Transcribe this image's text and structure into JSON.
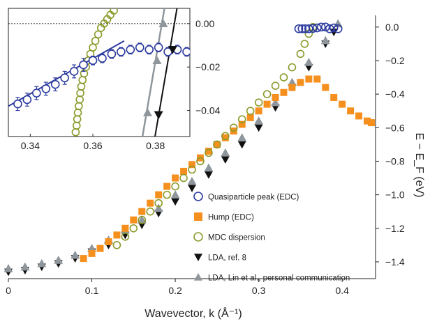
{
  "chart_data": {
    "type": "scatter",
    "xlabel": "Wavevector, k (Å⁻¹)",
    "ylabel": "E − E_F (eV)",
    "xlim": [
      0,
      0.44
    ],
    "ylim": [
      -1.5,
      0.07
    ],
    "xticks": [
      "0",
      "0.1",
      "0.2",
      "0.3",
      "0.4"
    ],
    "yticks": [
      "0.0",
      "−0.2",
      "−0.4",
      "−0.6",
      "−0.8",
      "−1.0",
      "−1.2",
      "−1.4"
    ],
    "legend_position": "bottom-right",
    "series": [
      {
        "name": "Quasiparticle peak (EDC)",
        "marker": "open-circle",
        "color": "#2b3a9e",
        "x": [
          0.348,
          0.352,
          0.356,
          0.36,
          0.365,
          0.37,
          0.375,
          0.38,
          0.385,
          0.39,
          0.395
        ],
        "y": [
          -0.01,
          -0.01,
          -0.01,
          -0.01,
          -0.008,
          -0.005,
          0.0,
          0.0,
          -0.01,
          -0.005,
          -0.01
        ]
      },
      {
        "name": "Hump (EDC)",
        "marker": "filled-square",
        "color": "#f5901e",
        "x": [
          0.09,
          0.1,
          0.11,
          0.12,
          0.13,
          0.14,
          0.15,
          0.16,
          0.17,
          0.18,
          0.19,
          0.2,
          0.21,
          0.22,
          0.23,
          0.24,
          0.25,
          0.26,
          0.27,
          0.28,
          0.29,
          0.3,
          0.31,
          0.32,
          0.33,
          0.34,
          0.35,
          0.36,
          0.37,
          0.38,
          0.39,
          0.4,
          0.41,
          0.42,
          0.43,
          0.435
        ],
        "y": [
          -1.38,
          -1.35,
          -1.32,
          -1.28,
          -1.24,
          -1.2,
          -1.15,
          -1.1,
          -1.05,
          -1.0,
          -0.95,
          -0.9,
          -0.86,
          -0.82,
          -0.78,
          -0.74,
          -0.7,
          -0.66,
          -0.62,
          -0.58,
          -0.54,
          -0.5,
          -0.46,
          -0.42,
          -0.39,
          -0.36,
          -0.33,
          -0.31,
          -0.31,
          -0.36,
          -0.42,
          -0.46,
          -0.5,
          -0.53,
          -0.56,
          -0.57
        ]
      },
      {
        "name": "MDC dispersion",
        "marker": "open-circle",
        "color": "#8a9a2a",
        "x": [
          0.13,
          0.14,
          0.15,
          0.16,
          0.17,
          0.18,
          0.19,
          0.2,
          0.21,
          0.22,
          0.23,
          0.24,
          0.25,
          0.26,
          0.27,
          0.28,
          0.29,
          0.3,
          0.31,
          0.32,
          0.33,
          0.34,
          0.35,
          0.355,
          0.36,
          0.365
        ],
        "y": [
          -1.3,
          -1.25,
          -1.2,
          -1.15,
          -1.1,
          -1.05,
          -1.0,
          -0.95,
          -0.9,
          -0.85,
          -0.8,
          -0.75,
          -0.7,
          -0.65,
          -0.6,
          -0.55,
          -0.5,
          -0.45,
          -0.4,
          -0.35,
          -0.3,
          -0.24,
          -0.16,
          -0.1,
          -0.04,
          0.0
        ]
      },
      {
        "name": "LDA, ref. 8",
        "marker": "filled-triangle-down",
        "color": "#111111",
        "x": [
          0.0,
          0.02,
          0.04,
          0.06,
          0.08,
          0.1,
          0.12,
          0.14,
          0.16,
          0.18,
          0.2,
          0.22,
          0.24,
          0.26,
          0.28,
          0.3,
          0.32,
          0.34,
          0.36,
          0.38,
          0.39
        ],
        "y": [
          -1.46,
          -1.45,
          -1.43,
          -1.41,
          -1.38,
          -1.34,
          -1.3,
          -1.24,
          -1.18,
          -1.11,
          -1.04,
          -0.96,
          -0.88,
          -0.79,
          -0.7,
          -0.6,
          -0.48,
          -0.36,
          -0.24,
          -0.1,
          -0.03
        ]
      },
      {
        "name": "LDA, Lin et al., personal communication",
        "marker": "filled-triangle-up",
        "color": "#8f979c",
        "x": [
          0.0,
          0.02,
          0.04,
          0.06,
          0.08,
          0.1,
          0.12,
          0.14,
          0.16,
          0.18,
          0.2,
          0.22,
          0.24,
          0.26,
          0.28,
          0.3,
          0.32,
          0.34,
          0.36,
          0.38,
          0.395
        ],
        "y": [
          -1.44,
          -1.43,
          -1.41,
          -1.39,
          -1.36,
          -1.32,
          -1.27,
          -1.21,
          -1.15,
          -1.08,
          -1.0,
          -0.92,
          -0.84,
          -0.75,
          -0.66,
          -0.56,
          -0.45,
          -0.33,
          -0.21,
          -0.08,
          0.02
        ]
      }
    ],
    "inset": {
      "xlim": [
        0.333,
        0.391
      ],
      "ylim": [
        -0.052,
        0.007
      ],
      "xticks": [
        "0.34",
        "0.36",
        "0.38"
      ],
      "yticks": [
        "0.00",
        "−0.02",
        "−0.04"
      ],
      "quasiparticle_fit": {
        "x": [
          0.333,
          0.37
        ],
        "y": [
          -0.038,
          -0.008
        ]
      },
      "quasiparticle_points": {
        "x": [
          0.336,
          0.339,
          0.342,
          0.345,
          0.348,
          0.351,
          0.354,
          0.357,
          0.36,
          0.363,
          0.366,
          0.369,
          0.372,
          0.375,
          0.378,
          0.381,
          0.384,
          0.387,
          0.39
        ],
        "y": [
          -0.037,
          -0.035,
          -0.032,
          -0.03,
          -0.028,
          -0.025,
          -0.022,
          -0.019,
          -0.017,
          -0.016,
          -0.014,
          -0.013,
          -0.012,
          -0.011,
          -0.012,
          -0.011,
          -0.013,
          -0.012,
          -0.013
        ],
        "err": [
          0.003,
          0.003,
          0.003,
          0.003,
          0.003,
          0.003,
          0.003,
          0.003,
          0.002,
          0.002,
          0.002,
          0.002,
          0.002,
          0.002,
          0.002,
          0.002,
          0.002,
          0.002,
          0.002
        ]
      },
      "mdc_points": {
        "x": [
          0.3545,
          0.3548,
          0.355,
          0.3552,
          0.3555,
          0.3558,
          0.356,
          0.3563,
          0.3567,
          0.3572,
          0.3578,
          0.3585,
          0.3592,
          0.36,
          0.3608,
          0.3617,
          0.3626,
          0.3636,
          0.3646,
          0.3656,
          0.3667
        ],
        "y": [
          -0.05,
          -0.047,
          -0.044,
          -0.041,
          -0.038,
          -0.035,
          -0.032,
          -0.029,
          -0.026,
          -0.023,
          -0.02,
          -0.017,
          -0.014,
          -0.011,
          -0.008,
          -0.005,
          -0.002,
          0.0,
          0.002,
          0.004,
          0.006
        ]
      },
      "lda_black": {
        "x": [
          0.3795,
          0.387
        ],
        "y": [
          -0.055,
          0.008
        ],
        "markers_x": [
          0.381,
          0.3855
        ],
        "markers_y": [
          -0.042,
          -0.012
        ]
      },
      "lda_gray": {
        "x": [
          0.3755,
          0.383
        ],
        "y": [
          -0.055,
          0.008
        ],
        "markers_x": [
          0.3775,
          0.3805,
          0.3825
        ],
        "markers_y": [
          -0.041,
          -0.017,
          0.0
        ]
      }
    }
  }
}
